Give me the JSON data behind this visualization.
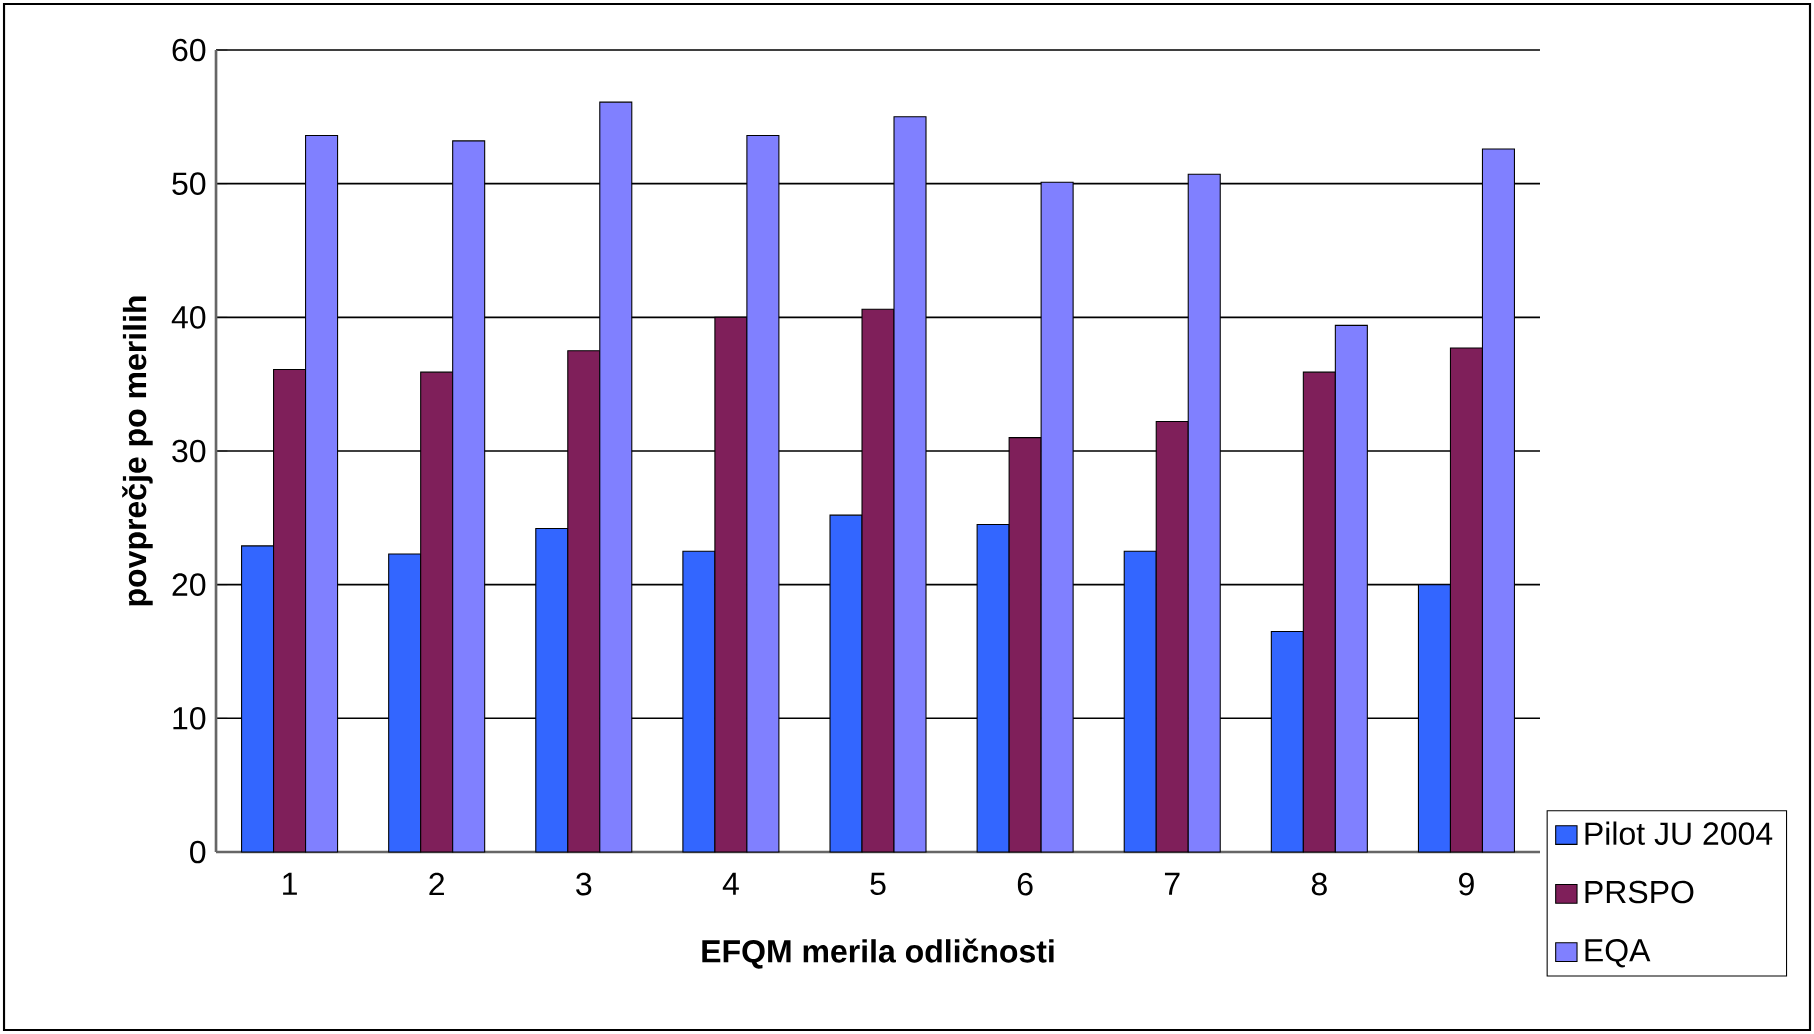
{
  "chart_data": {
    "type": "bar",
    "xlabel": "EFQM merila odličnosti",
    "ylabel": "povprečje po merilih",
    "categories": [
      "1",
      "2",
      "3",
      "4",
      "5",
      "6",
      "7",
      "8",
      "9"
    ],
    "series": [
      {
        "name": "Pilot JU 2004",
        "color": "#3366ff",
        "values": [
          22.9,
          22.3,
          24.2,
          22.5,
          25.2,
          24.5,
          22.5,
          16.5,
          20.0
        ]
      },
      {
        "name": "PRSPO",
        "color": "#7f1f5a",
        "values": [
          36.1,
          35.9,
          37.5,
          40.0,
          40.6,
          31.0,
          32.2,
          35.9,
          37.7
        ]
      },
      {
        "name": "EQA",
        "color": "#8080ff",
        "values": [
          53.6,
          53.2,
          56.1,
          53.6,
          55.0,
          50.1,
          50.7,
          39.4,
          52.6
        ]
      }
    ],
    "ylim": [
      0,
      60
    ],
    "yticks": [
      0,
      10,
      20,
      30,
      40,
      50,
      60
    ],
    "grid": "y",
    "legend": "bottom right"
  }
}
